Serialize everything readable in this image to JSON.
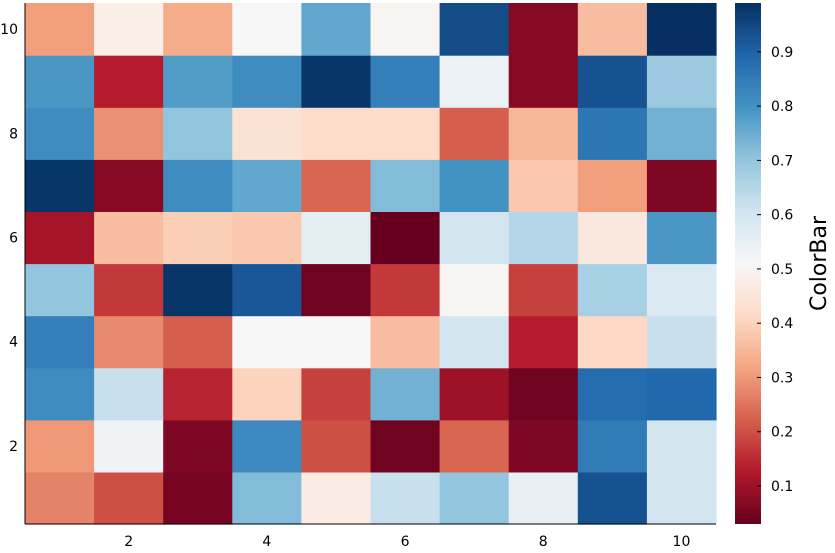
{
  "chart_data": {
    "type": "heatmap",
    "title": "",
    "xlabel": "",
    "ylabel": "",
    "x": [
      1,
      2,
      3,
      4,
      5,
      6,
      7,
      8,
      9,
      10
    ],
    "y": [
      1,
      2,
      3,
      4,
      5,
      6,
      7,
      8,
      9,
      10
    ],
    "xlim": [
      0.5,
      10.5
    ],
    "ylim": [
      0.5,
      10.5
    ],
    "xticks": [
      "2",
      "4",
      "6",
      "8",
      "10"
    ],
    "yticks": [
      "2",
      "4",
      "6",
      "8",
      "10"
    ],
    "colorscale": "RdBu",
    "colorbar": {
      "label": "ColorBar",
      "range": [
        0.03,
        0.99
      ],
      "ticks": [
        "0.1",
        "0.2",
        "0.3",
        "0.4",
        "0.5",
        "0.6",
        "0.7",
        "0.8",
        "0.9"
      ]
    },
    "z": [
      [
        0.27,
        0.2,
        0.05,
        0.72,
        0.47,
        0.62,
        0.7,
        0.55,
        0.93,
        0.6
      ],
      [
        0.3,
        0.53,
        0.06,
        0.82,
        0.2,
        0.04,
        0.23,
        0.06,
        0.85,
        0.6
      ],
      [
        0.81,
        0.62,
        0.14,
        0.4,
        0.18,
        0.74,
        0.1,
        0.04,
        0.88,
        0.89
      ],
      [
        0.84,
        0.28,
        0.22,
        0.51,
        0.51,
        0.36,
        0.6,
        0.13,
        0.41,
        0.62
      ],
      [
        0.7,
        0.17,
        0.98,
        0.92,
        0.04,
        0.17,
        0.5,
        0.18,
        0.67,
        0.58
      ],
      [
        0.11,
        0.36,
        0.39,
        0.38,
        0.56,
        0.03,
        0.6,
        0.65,
        0.46,
        0.79
      ],
      [
        0.98,
        0.07,
        0.81,
        0.76,
        0.23,
        0.72,
        0.8,
        0.38,
        0.31,
        0.06
      ],
      [
        0.81,
        0.29,
        0.7,
        0.44,
        0.42,
        0.42,
        0.22,
        0.35,
        0.86,
        0.74
      ],
      [
        0.79,
        0.13,
        0.78,
        0.81,
        0.98,
        0.84,
        0.54,
        0.07,
        0.93,
        0.69
      ],
      [
        0.31,
        0.48,
        0.33,
        0.51,
        0.76,
        0.5,
        0.94,
        0.07,
        0.36,
        0.99
      ]
    ]
  }
}
